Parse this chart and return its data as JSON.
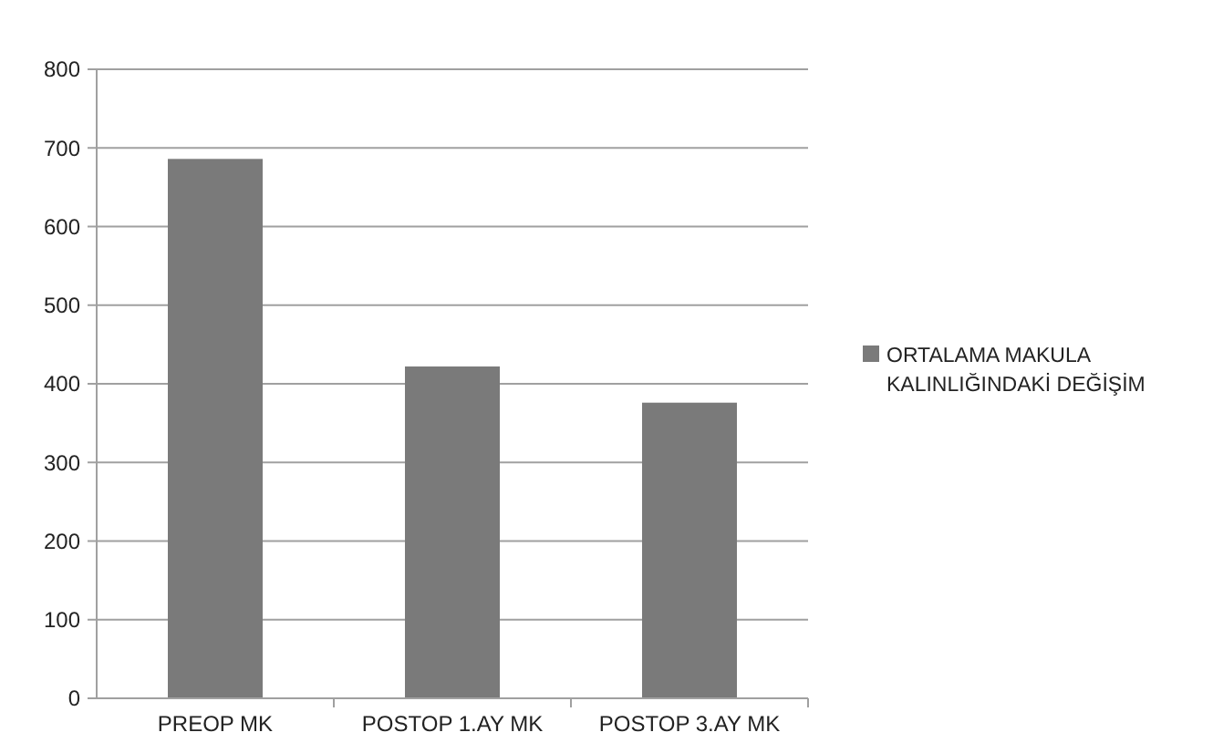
{
  "chart_data": {
    "type": "bar",
    "categories": [
      "PREOP MK",
      "POSTOP 1.AY MK",
      "POSTOP 3.AY MK"
    ],
    "series": [
      {
        "name": "ORTALAMA MAKULA KALINLIĞINDAKİ DEĞİŞİM",
        "color": "#7a7a7a",
        "values": [
          686,
          422,
          376
        ]
      }
    ],
    "ylim": [
      0,
      800
    ],
    "yticks": [
      0,
      100,
      200,
      300,
      400,
      500,
      600,
      700,
      800
    ],
    "grid": "y",
    "legend": "right"
  }
}
